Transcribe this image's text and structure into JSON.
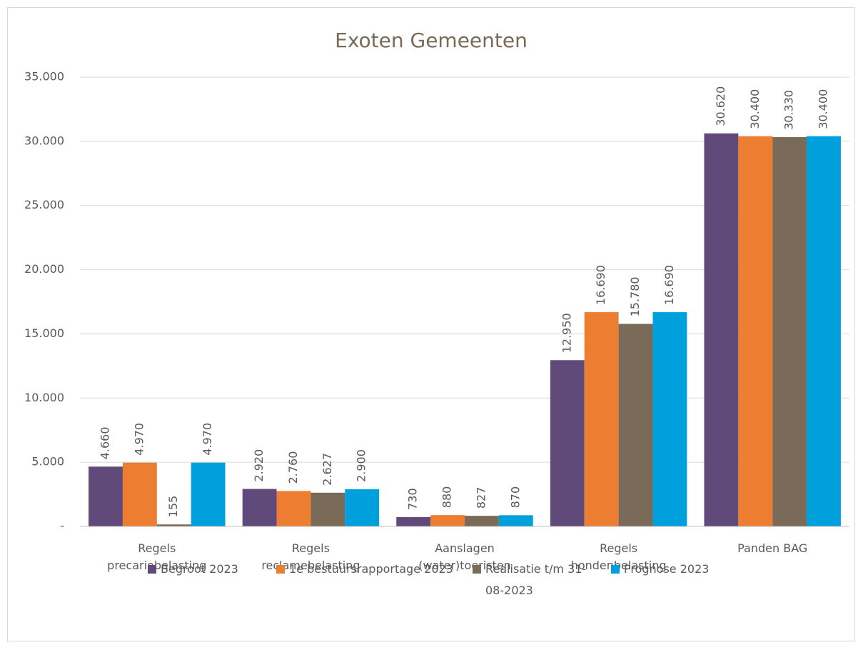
{
  "chart_data": {
    "type": "bar",
    "title": "Exoten Gemeenten",
    "categories": [
      "Regels precariobelasting",
      "Regels reclamebelasting",
      "Aanslagen (water)toeristen",
      "Regels hondenbelasting",
      "Panden BAG"
    ],
    "series": [
      {
        "name": "Begroot 2023",
        "color": "#5f4a7a",
        "values": [
          4660,
          2920,
          730,
          12950,
          30620
        ],
        "value_labels": [
          "4.660",
          "2.920",
          "730",
          "12.950",
          "30.620"
        ]
      },
      {
        "name": "1e bestuursrapportage 2023",
        "color": "#ed7d31",
        "values": [
          4970,
          2760,
          880,
          16690,
          30400
        ],
        "value_labels": [
          "4.970",
          "2.760",
          "880",
          "16.690",
          "30.400"
        ]
      },
      {
        "name": "Realisatie t/m 31-08-2023",
        "color": "#7a6a58",
        "values": [
          155,
          2627,
          827,
          15780,
          30330
        ],
        "value_labels": [
          "155",
          "2.627",
          "827",
          "15.780",
          "30.330"
        ]
      },
      {
        "name": "Prognose 2023",
        "color": "#00a0dc",
        "values": [
          4970,
          2900,
          870,
          16690,
          30400
        ],
        "value_labels": [
          "4.970",
          "2.900",
          "870",
          "16.690",
          "30.400"
        ]
      }
    ],
    "ylim": [
      0,
      35000
    ],
    "yticks": [
      {
        "value": 0,
        "label": "-"
      },
      {
        "value": 5000,
        "label": "5.000"
      },
      {
        "value": 10000,
        "label": "10.000"
      },
      {
        "value": 15000,
        "label": "15.000"
      },
      {
        "value": 20000,
        "label": "20.000"
      },
      {
        "value": 25000,
        "label": "25.000"
      },
      {
        "value": 30000,
        "label": "30.000"
      },
      {
        "value": 35000,
        "label": "35.000"
      }
    ],
    "grid": true,
    "legend": "bottom"
  }
}
